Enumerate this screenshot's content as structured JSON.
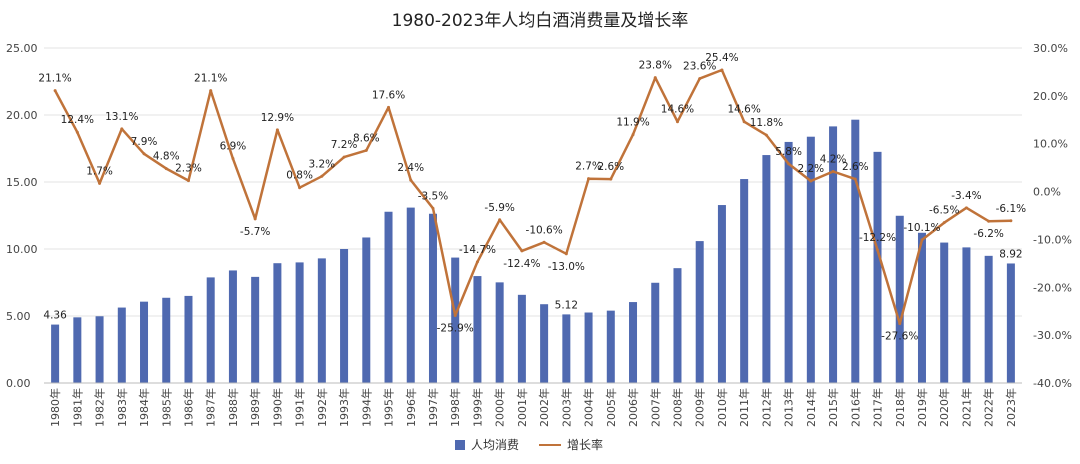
{
  "chart_data": {
    "type": "bar+line",
    "title": "1980-2023年人均白酒消费量及增长率",
    "categories": [
      "1980年",
      "1981年",
      "1982年",
      "1983年",
      "1984年",
      "1985年",
      "1986年",
      "1987年",
      "1988年",
      "1989年",
      "1990年",
      "1991年",
      "1992年",
      "1993年",
      "1994年",
      "1995年",
      "1996年",
      "1997年",
      "1998年",
      "1999年",
      "2000年",
      "2001年",
      "2002年",
      "2003年",
      "2004年",
      "2005年",
      "2006年",
      "2007年",
      "2008年",
      "2009年",
      "2010年",
      "2011年",
      "2012年",
      "2013年",
      "2014年",
      "2015年",
      "2016年",
      "2017年",
      "2018年",
      "2019年",
      "2020年",
      "2021年",
      "2022年",
      "2023年"
    ],
    "series": [
      {
        "name": "人均消费",
        "axis": "left",
        "type": "bar",
        "color": "#4f69b0",
        "values": [
          4.36,
          4.9,
          4.98,
          5.63,
          6.07,
          6.36,
          6.5,
          7.88,
          8.4,
          7.92,
          8.94,
          9.0,
          9.3,
          10.0,
          10.86,
          12.78,
          13.09,
          12.63,
          9.36,
          7.98,
          7.51,
          6.58,
          5.88,
          5.12,
          5.26,
          5.4,
          6.04,
          7.48,
          8.57,
          10.59,
          13.28,
          15.22,
          17.01,
          17.99,
          18.38,
          19.15,
          19.65,
          17.25,
          12.48,
          11.21,
          10.48,
          10.12,
          9.49,
          8.92
        ],
        "data_labels": {
          "0": "4.36",
          "23": "5.12",
          "43": "8.92"
        }
      },
      {
        "name": "增长率",
        "axis": "right",
        "type": "line",
        "color": "#c0733a",
        "values": [
          21.1,
          12.4,
          1.7,
          13.1,
          7.9,
          4.8,
          2.3,
          21.1,
          6.9,
          -5.7,
          12.9,
          0.8,
          3.2,
          7.2,
          8.6,
          17.6,
          2.4,
          -3.5,
          -25.9,
          -14.7,
          -5.9,
          -12.4,
          -10.6,
          -13.0,
          2.7,
          2.6,
          11.9,
          23.8,
          14.6,
          23.6,
          25.4,
          14.6,
          11.8,
          5.8,
          2.2,
          4.2,
          2.6,
          -12.2,
          -27.6,
          -10.1,
          -6.5,
          -3.4,
          -6.2,
          -6.1
        ],
        "labels": [
          "21.1%",
          "12.4%",
          "1.7%",
          "13.1%",
          "7.9%",
          "4.8%",
          "2.3%",
          "21.1%",
          "6.9%",
          "-5.7%",
          "12.9%",
          "0.8%",
          "3.2%",
          "7.2%",
          "8.6%",
          "17.6%",
          "2.4%",
          "-3.5%",
          "-25.9%",
          "-14.7%",
          "-5.9%",
          "-12.4%",
          "-10.6%",
          "-13.0%",
          "2.7%",
          "2.6%",
          "11.9%",
          "23.8%",
          "14.6%",
          "23.6%",
          "25.4%",
          "14.6%",
          "11.8%",
          "5.8%",
          "2.2%",
          "4.2%",
          "2.6%",
          "-12.2%",
          "-27.6%",
          "-10.1%",
          "-6.5%",
          "-3.4%",
          "-6.2%",
          "-6.1%"
        ]
      }
    ],
    "y_left": {
      "ylim": [
        0,
        25
      ],
      "ticks": [
        "0.00",
        "5.00",
        "10.00",
        "15.00",
        "20.00",
        "25.00"
      ]
    },
    "y_right": {
      "ylim": [
        -40,
        30
      ],
      "ticks": [
        "-40.0%",
        "-30.0%",
        "-20.0%",
        "-10.0%",
        "0.0%",
        "10.0%",
        "20.0%",
        "30.0%"
      ]
    },
    "grid": true,
    "legend": "bottom-center"
  }
}
